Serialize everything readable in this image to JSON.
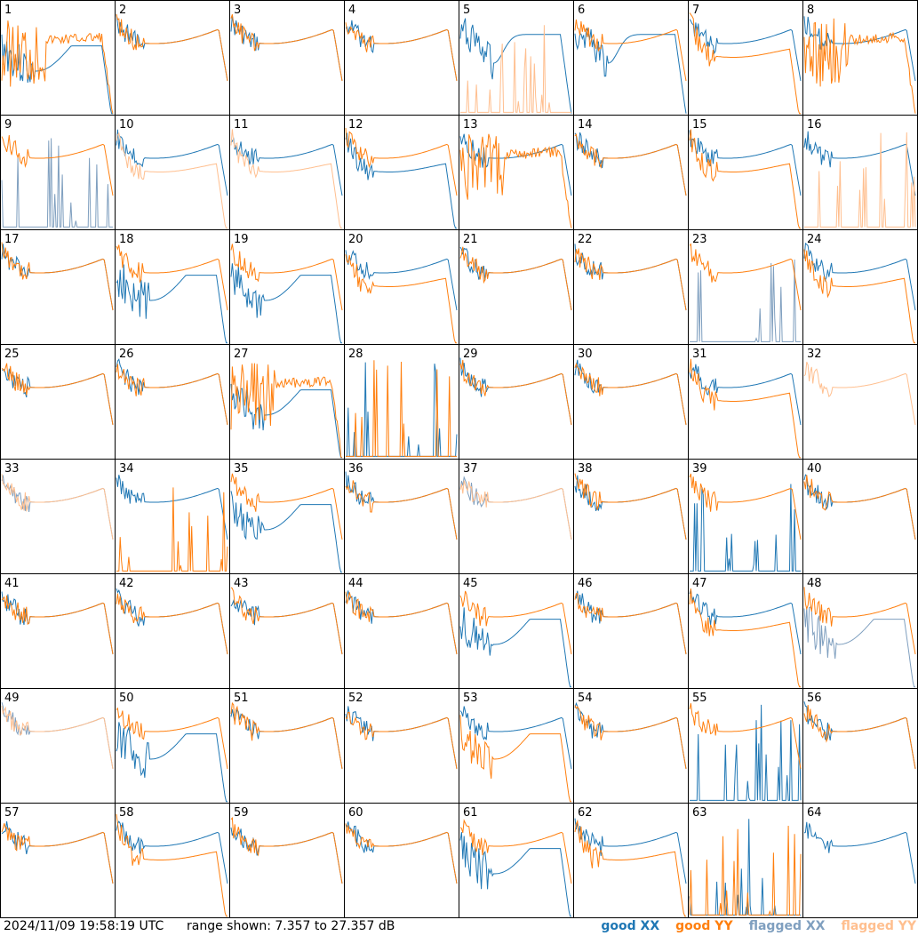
{
  "colors": {
    "good_xx": "#1f77b4",
    "good_yy": "#ff7f0e",
    "flagged_xx": "#7f9fbf",
    "flagged_yy": "#ffbf8f",
    "frame": "#000000"
  },
  "footer": {
    "timestamp": "2024/11/09 19:58:19 UTC",
    "range_text": "range shown: 7.357 to 27.357 dB",
    "legend": [
      "good XX",
      "good YY",
      "flagged XX",
      "flagged YY"
    ]
  },
  "chart_data": {
    "type": "line",
    "layout": "small-multiples grid, 8 columns x 8 rows",
    "title": "",
    "xlabel": "",
    "ylabel": "",
    "ylim": [
      7.357,
      27.357
    ],
    "ylim_unit": "dB",
    "grid": false,
    "legend_position": "bottom-right",
    "series_legend": [
      "good XX",
      "good YY",
      "flagged XX",
      "flagged YY"
    ],
    "panels": [
      {
        "label": "1",
        "xx": "lowdip",
        "yy": "spiky",
        "xx_flag": false,
        "yy_flag": false
      },
      {
        "label": "2",
        "xx": "normal",
        "yy": "normal",
        "xx_flag": false,
        "yy_flag": false
      },
      {
        "label": "3",
        "xx": "normal",
        "yy": "normal",
        "xx_flag": false,
        "yy_flag": false
      },
      {
        "label": "4",
        "xx": "normal",
        "yy": "normal",
        "xx_flag": false,
        "yy_flag": false
      },
      {
        "label": "5",
        "xx": "dip",
        "yy": "bottom",
        "xx_flag": false,
        "yy_flag": true
      },
      {
        "label": "6",
        "xx": "dip",
        "yy": "normal",
        "xx_flag": false,
        "yy_flag": false
      },
      {
        "label": "7",
        "xx": "normal",
        "yy": "low",
        "xx_flag": false,
        "yy_flag": false
      },
      {
        "label": "8",
        "xx": "normal",
        "yy": "spiky",
        "xx_flag": false,
        "yy_flag": false
      },
      {
        "label": "9",
        "xx": "bottom",
        "yy": "normal",
        "xx_flag": true,
        "yy_flag": false
      },
      {
        "label": "10",
        "xx": "normal",
        "yy": "low",
        "xx_flag": false,
        "yy_flag": true
      },
      {
        "label": "11",
        "xx": "normal",
        "yy": "low",
        "xx_flag": false,
        "yy_flag": true
      },
      {
        "label": "12",
        "xx": "low",
        "yy": "normal",
        "xx_flag": false,
        "yy_flag": false
      },
      {
        "label": "13",
        "xx": "normal",
        "yy": "spiky",
        "xx_flag": false,
        "yy_flag": false
      },
      {
        "label": "14",
        "xx": "normal",
        "yy": "normal",
        "xx_flag": false,
        "yy_flag": false
      },
      {
        "label": "15",
        "xx": "normal",
        "yy": "low",
        "xx_flag": false,
        "yy_flag": false
      },
      {
        "label": "16",
        "xx": "normal",
        "yy": "bottom",
        "xx_flag": false,
        "yy_flag": true
      },
      {
        "label": "17",
        "xx": "normal",
        "yy": "normal",
        "xx_flag": false,
        "yy_flag": false
      },
      {
        "label": "18",
        "xx": "lowdip",
        "yy": "normal",
        "xx_flag": false,
        "yy_flag": false
      },
      {
        "label": "19",
        "xx": "lowdip",
        "yy": "normal",
        "xx_flag": false,
        "yy_flag": false
      },
      {
        "label": "20",
        "xx": "normal",
        "yy": "low",
        "xx_flag": false,
        "yy_flag": false
      },
      {
        "label": "21",
        "xx": "normal",
        "yy": "normal",
        "xx_flag": false,
        "yy_flag": false
      },
      {
        "label": "22",
        "xx": "normal",
        "yy": "normal",
        "xx_flag": false,
        "yy_flag": false
      },
      {
        "label": "23",
        "xx": "bottom",
        "yy": "normal",
        "xx_flag": true,
        "yy_flag": false
      },
      {
        "label": "24",
        "xx": "normal",
        "yy": "low",
        "xx_flag": false,
        "yy_flag": false
      },
      {
        "label": "25",
        "xx": "normal",
        "yy": "normal",
        "xx_flag": false,
        "yy_flag": false
      },
      {
        "label": "26",
        "xx": "normal",
        "yy": "normal",
        "xx_flag": false,
        "yy_flag": false
      },
      {
        "label": "27",
        "xx": "lowdip",
        "yy": "spiky",
        "xx_flag": false,
        "yy_flag": false
      },
      {
        "label": "28",
        "xx": "bottom",
        "yy": "bottom",
        "xx_flag": false,
        "yy_flag": false
      },
      {
        "label": "29",
        "xx": "normal",
        "yy": "normal",
        "xx_flag": false,
        "yy_flag": false
      },
      {
        "label": "30",
        "xx": "normal",
        "yy": "normal",
        "xx_flag": false,
        "yy_flag": false
      },
      {
        "label": "31",
        "xx": "normal",
        "yy": "low",
        "xx_flag": false,
        "yy_flag": false
      },
      {
        "label": "32",
        "xx": "none",
        "yy": "normal",
        "xx_flag": false,
        "yy_flag": true
      },
      {
        "label": "33",
        "xx": "normal",
        "yy": "normal",
        "xx_flag": true,
        "yy_flag": true
      },
      {
        "label": "34",
        "xx": "normal",
        "yy": "bottom",
        "xx_flag": false,
        "yy_flag": false
      },
      {
        "label": "35",
        "xx": "lowdip",
        "yy": "normal",
        "xx_flag": false,
        "yy_flag": false
      },
      {
        "label": "36",
        "xx": "normal",
        "yy": "normal",
        "xx_flag": false,
        "yy_flag": false
      },
      {
        "label": "37",
        "xx": "normal",
        "yy": "normal",
        "xx_flag": true,
        "yy_flag": true
      },
      {
        "label": "38",
        "xx": "normal",
        "yy": "normal",
        "xx_flag": false,
        "yy_flag": false
      },
      {
        "label": "39",
        "xx": "bottom",
        "yy": "normal",
        "xx_flag": false,
        "yy_flag": false
      },
      {
        "label": "40",
        "xx": "normal",
        "yy": "normal",
        "xx_flag": false,
        "yy_flag": false
      },
      {
        "label": "41",
        "xx": "normal",
        "yy": "normal",
        "xx_flag": false,
        "yy_flag": false
      },
      {
        "label": "42",
        "xx": "normal",
        "yy": "normal",
        "xx_flag": false,
        "yy_flag": false
      },
      {
        "label": "43",
        "xx": "normal",
        "yy": "normal",
        "xx_flag": false,
        "yy_flag": false
      },
      {
        "label": "44",
        "xx": "normal",
        "yy": "normal",
        "xx_flag": false,
        "yy_flag": false
      },
      {
        "label": "45",
        "xx": "lowdip",
        "yy": "normal",
        "xx_flag": false,
        "yy_flag": false
      },
      {
        "label": "46",
        "xx": "normal",
        "yy": "normal",
        "xx_flag": false,
        "yy_flag": false
      },
      {
        "label": "47",
        "xx": "normal",
        "yy": "low",
        "xx_flag": false,
        "yy_flag": false
      },
      {
        "label": "48",
        "xx": "lowdip",
        "yy": "normal",
        "xx_flag": true,
        "yy_flag": false
      },
      {
        "label": "49",
        "xx": "normal",
        "yy": "normal",
        "xx_flag": true,
        "yy_flag": true
      },
      {
        "label": "50",
        "xx": "lowdip",
        "yy": "normal",
        "xx_flag": false,
        "yy_flag": false
      },
      {
        "label": "51",
        "xx": "normal",
        "yy": "normal",
        "xx_flag": false,
        "yy_flag": false
      },
      {
        "label": "52",
        "xx": "normal",
        "yy": "normal",
        "xx_flag": false,
        "yy_flag": false
      },
      {
        "label": "53",
        "xx": "normal",
        "yy": "lowdip",
        "xx_flag": false,
        "yy_flag": false
      },
      {
        "label": "54",
        "xx": "normal",
        "yy": "normal",
        "xx_flag": false,
        "yy_flag": false
      },
      {
        "label": "55",
        "xx": "bottom",
        "yy": "normal",
        "xx_flag": false,
        "yy_flag": false
      },
      {
        "label": "56",
        "xx": "normal",
        "yy": "normal",
        "xx_flag": false,
        "yy_flag": false
      },
      {
        "label": "57",
        "xx": "normal",
        "yy": "normal",
        "xx_flag": false,
        "yy_flag": false
      },
      {
        "label": "58",
        "xx": "normal",
        "yy": "low",
        "xx_flag": false,
        "yy_flag": false
      },
      {
        "label": "59",
        "xx": "normal",
        "yy": "normal",
        "xx_flag": false,
        "yy_flag": false
      },
      {
        "label": "60",
        "xx": "normal",
        "yy": "normal",
        "xx_flag": false,
        "yy_flag": false
      },
      {
        "label": "61",
        "xx": "lowdip",
        "yy": "normal",
        "xx_flag": false,
        "yy_flag": false
      },
      {
        "label": "62",
        "xx": "normal",
        "yy": "low",
        "xx_flag": false,
        "yy_flag": false
      },
      {
        "label": "63",
        "xx": "bottom",
        "yy": "bottom",
        "xx_flag": false,
        "yy_flag": false
      },
      {
        "label": "64",
        "xx": "normal",
        "yy": "none",
        "xx_flag": false,
        "yy_flag": false
      }
    ]
  }
}
